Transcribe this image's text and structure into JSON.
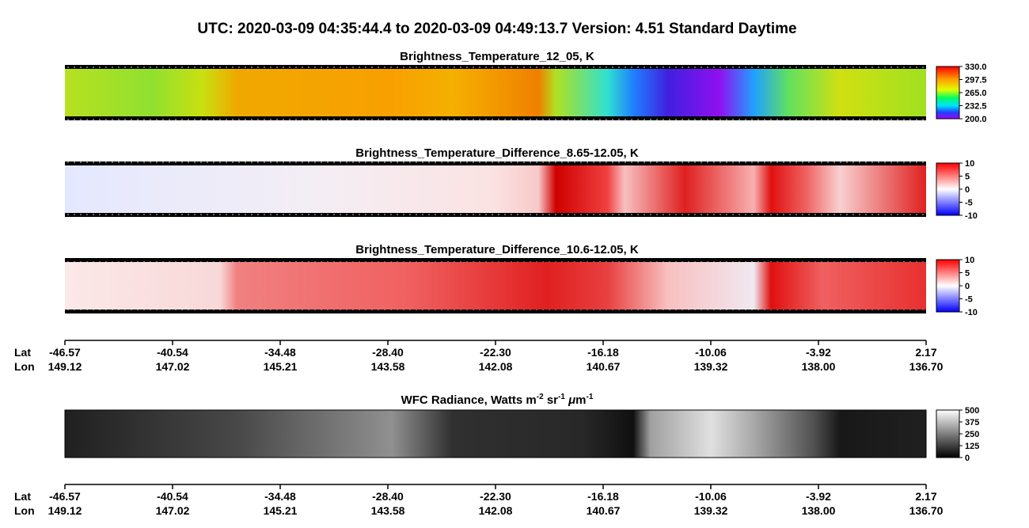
{
  "title": "UTC:  2020-03-09   04:35:44.4  to  2020-03-09   04:49:13.7    Version: 4.51  Standard Daytime",
  "panels": [
    {
      "title": "Brightness_Temperature_12_05, K",
      "colorbar_labels": [
        "330.0",
        "297.5",
        "265.0",
        "232.5",
        "200.0"
      ]
    },
    {
      "title": "Brightness_Temperature_Difference_8.65-12.05, K",
      "colorbar_labels": [
        "10",
        "5",
        "0",
        "-5",
        "-10"
      ]
    },
    {
      "title": "Brightness_Temperature_Difference_10.6-12.05, K",
      "colorbar_labels": [
        "10",
        "5",
        "0",
        "-5",
        "-10"
      ]
    },
    {
      "title_parts": [
        "WFC Radiance, Watts m",
        "-2",
        " sr",
        "-1",
        " ",
        "μ",
        "m",
        "-1"
      ],
      "colorbar_labels": [
        "500",
        "375",
        "250",
        "125",
        "0"
      ]
    }
  ],
  "axes": [
    {
      "lat_label": "Lat",
      "lon_label": "Lon",
      "lat": [
        "-46.57",
        "-40.54",
        "-34.48",
        "-28.40",
        "-22.30",
        "-16.18",
        "-10.06",
        "-3.92",
        "2.17"
      ],
      "lon": [
        "149.12",
        "147.02",
        "145.21",
        "143.58",
        "142.08",
        "140.67",
        "139.32",
        "138.00",
        "136.70"
      ]
    },
    {
      "lat_label": "Lat",
      "lon_label": "Lon",
      "lat": [
        "-46.57",
        "-40.54",
        "-34.48",
        "-28.40",
        "-22.30",
        "-16.18",
        "-10.06",
        "-3.92",
        "2.17"
      ],
      "lon": [
        "149.12",
        "147.02",
        "145.21",
        "143.58",
        "142.08",
        "140.67",
        "139.32",
        "138.00",
        "136.70"
      ]
    }
  ]
}
